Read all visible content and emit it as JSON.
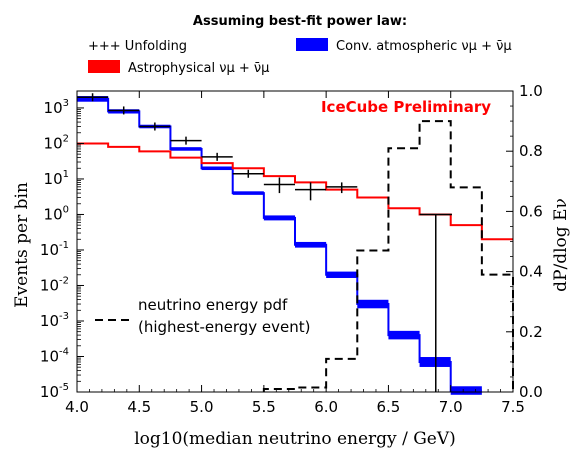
{
  "chart_data": {
    "type": "line",
    "legend": {
      "title": "Assuming best-fit power law:",
      "placement": "top",
      "entries": [
        {
          "label": "+++ Unfolding",
          "kind": "crosses",
          "color": "#000000"
        },
        {
          "label": "Conv. atmospheric νμ + ν̄μ",
          "kind": "band",
          "color": "#0000ff"
        },
        {
          "label": "Astrophysical νμ + ν̄μ",
          "kind": "band",
          "color": "#ff0000"
        }
      ]
    },
    "annotation": {
      "text": "IceCube Preliminary",
      "color": "#ff0000"
    },
    "pdf_label": {
      "line1": "neutrino energy pdf",
      "line2": "(highest-energy event)"
    },
    "xlabel": "log10(median neutrino energy / GeV)",
    "ylabel": "Events per bin",
    "y2label": "dP/dlog Eν",
    "xlim": [
      4.0,
      7.5
    ],
    "xticks": [
      4.0,
      4.5,
      5.0,
      5.5,
      6.0,
      6.5,
      7.0,
      7.5
    ],
    "ylim": [
      1e-05,
      3000
    ],
    "yscale": "log",
    "yticks_exp": [
      -5,
      -4,
      -3,
      -2,
      -1,
      0,
      1,
      2,
      3
    ],
    "y2lim": [
      0,
      1
    ],
    "y2ticks": [
      "0.0",
      "0.2",
      "0.4",
      "0.6",
      "0.8",
      "1.0"
    ],
    "grid": false,
    "bin_edges": [
      4.0,
      4.25,
      4.5,
      4.75,
      5.0,
      5.25,
      5.5,
      5.75,
      6.0,
      6.25,
      6.5,
      6.75,
      7.0,
      7.25,
      7.5
    ],
    "series": [
      {
        "name": "Conv. atmospheric νμ + ν̄μ",
        "color": "#0000ff",
        "axis": "left",
        "style": "step-band",
        "values": [
          1800,
          800,
          300,
          70,
          20,
          4,
          0.8,
          0.14,
          0.02,
          0.003,
          0.0004,
          7e-05,
          1.1e-05,
          null
        ],
        "band_half_width_dex": [
          0.08,
          0.06,
          0.05,
          0.05,
          0.05,
          0.05,
          0.07,
          0.08,
          0.09,
          0.12,
          0.12,
          0.14,
          0.12,
          null
        ]
      },
      {
        "name": "Astrophysical νμ + ν̄μ",
        "color": "#ff0000",
        "axis": "left",
        "style": "step",
        "values": [
          100,
          80,
          60,
          40,
          28,
          20,
          12,
          8,
          5,
          3,
          1.5,
          1.0,
          0.5,
          0.2
        ]
      },
      {
        "name": "Unfolding",
        "color": "#000000",
        "axis": "left",
        "style": "crosses",
        "points": [
          {
            "x": 4.125,
            "y": 2000
          },
          {
            "x": 4.375,
            "y": 850
          },
          {
            "x": 4.625,
            "y": 300
          },
          {
            "x": 4.875,
            "y": 120
          },
          {
            "x": 5.125,
            "y": 42
          },
          {
            "x": 5.375,
            "y": 14
          },
          {
            "x": 5.625,
            "y": 7,
            "ylo": 4,
            "yhi": 11
          },
          {
            "x": 5.875,
            "y": 5,
            "ylo": 2.5,
            "yhi": 8
          },
          {
            "x": 6.125,
            "y": 6,
            "ylo": 4,
            "yhi": 8
          }
        ],
        "vline": {
          "x": 6.88,
          "ylo": 1e-05,
          "yhi": 1.0
        }
      },
      {
        "name": "neutrino energy pdf",
        "color": "#000000",
        "axis": "right",
        "style": "step-dashed",
        "edges": [
          5.5,
          5.75,
          6.0,
          6.25,
          6.5,
          6.75,
          7.0,
          7.25,
          7.5
        ],
        "values": [
          0.01,
          0.015,
          0.11,
          0.47,
          0.81,
          0.9,
          0.68,
          0.39
        ]
      }
    ]
  }
}
